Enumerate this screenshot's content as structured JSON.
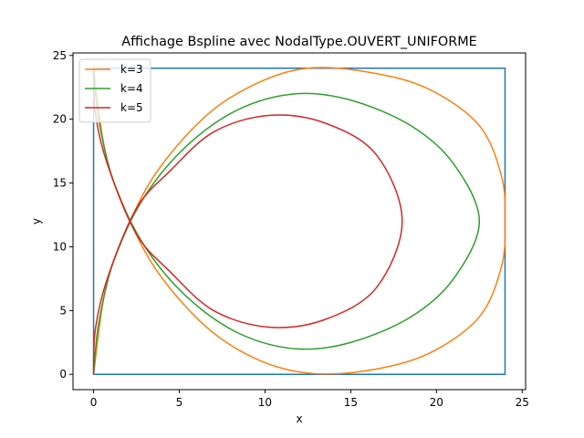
{
  "chart_data": {
    "type": "line",
    "title": "Affichage Bspline avec NodalType.OUVERT_UNIFORME",
    "xlabel": "x",
    "ylabel": "y",
    "xlim": [
      -1.2,
      25.2
    ],
    "ylim": [
      -1.2,
      25.2
    ],
    "xticks": [
      0,
      5,
      10,
      15,
      20,
      25
    ],
    "yticks": [
      0,
      5,
      10,
      15,
      20,
      25
    ],
    "grid": false,
    "legend_position": "top-left",
    "series": [
      {
        "name": "",
        "color": "#1f77b4",
        "points": [
          [
            0,
            24
          ],
          [
            24,
            24
          ],
          [
            24,
            0
          ],
          [
            0,
            0
          ],
          [
            0,
            24
          ]
        ]
      },
      {
        "name": "k=3",
        "color": "#ff7f0e",
        "points": [
          [
            0,
            24
          ],
          [
            0.6,
            18
          ],
          [
            1.5,
            14
          ],
          [
            3.5,
            8.5
          ],
          [
            6.5,
            3.8
          ],
          [
            9.5,
            1.2
          ],
          [
            12.5,
            0.1
          ],
          [
            16,
            0.3
          ],
          [
            19.5,
            1.6
          ],
          [
            22.5,
            4.5
          ],
          [
            23.8,
            8.5
          ],
          [
            24,
            12
          ],
          [
            23.8,
            15.5
          ],
          [
            22.5,
            19.5
          ],
          [
            19.5,
            22.4
          ],
          [
            16,
            23.7
          ],
          [
            12.5,
            24
          ],
          [
            9.5,
            22.8
          ],
          [
            6.5,
            20.2
          ],
          [
            3.5,
            15.5
          ],
          [
            1.5,
            10
          ],
          [
            0.6,
            6
          ],
          [
            0,
            0
          ]
        ]
      },
      {
        "name": "k=4",
        "color": "#2ca02c",
        "points": [
          [
            0,
            24
          ],
          [
            0.3,
            20
          ],
          [
            1.2,
            15
          ],
          [
            3,
            10
          ],
          [
            5.5,
            6
          ],
          [
            8.5,
            3.2
          ],
          [
            11.8,
            2
          ],
          [
            15,
            2.5
          ],
          [
            18.5,
            4.5
          ],
          [
            21,
            7.5
          ],
          [
            22.5,
            12
          ],
          [
            21,
            16.5
          ],
          [
            18.5,
            19.5
          ],
          [
            15,
            21.5
          ],
          [
            11.8,
            22
          ],
          [
            8.5,
            20.8
          ],
          [
            5.5,
            18
          ],
          [
            3,
            14
          ],
          [
            1.2,
            9
          ],
          [
            0.3,
            4
          ],
          [
            0,
            0
          ]
        ]
      },
      {
        "name": "k=5",
        "color": "#d62728",
        "points": [
          [
            0,
            24
          ],
          [
            0.1,
            20.5
          ],
          [
            0.8,
            16.5
          ],
          [
            2.5,
            11
          ],
          [
            4.5,
            8
          ],
          [
            7,
            5
          ],
          [
            10.2,
            3.7
          ],
          [
            13.5,
            4.3
          ],
          [
            16.5,
            6.8
          ],
          [
            18,
            12
          ],
          [
            16.5,
            17.2
          ],
          [
            13.5,
            19.7
          ],
          [
            10.2,
            20.3
          ],
          [
            7,
            19
          ],
          [
            4.5,
            16
          ],
          [
            2.5,
            13
          ],
          [
            0.8,
            7.5
          ],
          [
            0.1,
            3.5
          ],
          [
            0,
            0
          ]
        ]
      }
    ]
  }
}
